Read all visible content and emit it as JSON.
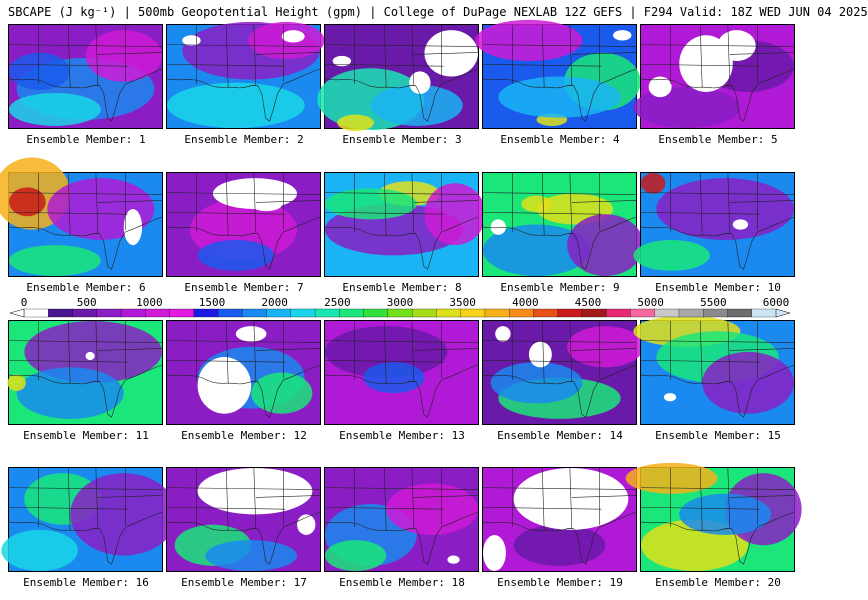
{
  "title": "SBCAPE (J kg⁻¹) | 500mb Geopotential Height (gpm) | College of DuPage NEXLAB 12Z GEFS | F294 Valid: 18Z WED JUN 04 2025",
  "colorbar": {
    "ticks": [
      "0",
      "500",
      "1000",
      "1500",
      "2000",
      "2500",
      "3000",
      "3500",
      "4000",
      "4500",
      "5000",
      "5500",
      "6000"
    ],
    "colors": [
      "#ffffff",
      "#4a1690",
      "#6a1aa8",
      "#8a1ec4",
      "#b01ad6",
      "#cf1ad6",
      "#e21ae0",
      "#1a1ae6",
      "#1a5aec",
      "#1a8af0",
      "#1ab4f4",
      "#1ad6e8",
      "#1ae6b4",
      "#1ae67a",
      "#34e03c",
      "#72e01a",
      "#a8dc1a",
      "#e0e01a",
      "#f6d21a",
      "#f6b01a",
      "#f68a1a",
      "#e8501a",
      "#c81a1a",
      "#a01a1a",
      "#e62a70",
      "#f66aa0",
      "#c8c8c8",
      "#a8a8a8",
      "#8a8a8a",
      "#6c6c6c",
      "#cce6f6"
    ]
  },
  "panels": [
    {
      "label": "Ensemble Member: 1",
      "base": "#8a1ec4",
      "blobs": [
        [
          "#1a8af0",
          0.5,
          0.62,
          0.45,
          0.3
        ],
        [
          "#1ad6e8",
          0.3,
          0.82,
          0.3,
          0.16
        ],
        [
          "#cf1ad6",
          0.75,
          0.3,
          0.25,
          0.25
        ],
        [
          "#1a5aec",
          0.2,
          0.45,
          0.2,
          0.18
        ]
      ],
      "white": []
    },
    {
      "label": "Ensemble Member: 2",
      "base": "#1a8af0",
      "blobs": [
        [
          "#8a1ec4",
          0.55,
          0.25,
          0.45,
          0.28
        ],
        [
          "#1ad6e8",
          0.45,
          0.78,
          0.45,
          0.22
        ],
        [
          "#cf1ad6",
          0.78,
          0.15,
          0.25,
          0.18
        ]
      ],
      "white": [
        [
          0.1,
          0.1,
          0.12,
          0.1
        ],
        [
          0.75,
          0.05,
          0.15,
          0.12
        ]
      ]
    },
    {
      "label": "Ensemble Member: 3",
      "base": "#6a1aa8",
      "blobs": [
        [
          "#1ae6b4",
          0.3,
          0.72,
          0.35,
          0.3
        ],
        [
          "#1ab4f4",
          0.6,
          0.78,
          0.3,
          0.2
        ],
        [
          "#e0e01a",
          0.2,
          0.95,
          0.12,
          0.08
        ]
      ],
      "white": [
        [
          0.65,
          0.05,
          0.35,
          0.45
        ],
        [
          0.05,
          0.3,
          0.12,
          0.1
        ],
        [
          0.55,
          0.45,
          0.14,
          0.22
        ]
      ]
    },
    {
      "label": "Ensemble Member: 4",
      "base": "#1a5aec",
      "blobs": [
        [
          "#cf1ad6",
          0.3,
          0.15,
          0.35,
          0.2
        ],
        [
          "#1ae67a",
          0.78,
          0.55,
          0.25,
          0.28
        ],
        [
          "#e0e01a",
          0.45,
          0.92,
          0.1,
          0.06
        ],
        [
          "#1ab4f4",
          0.5,
          0.7,
          0.4,
          0.2
        ]
      ],
      "white": [
        [
          0.85,
          0.05,
          0.12,
          0.1
        ]
      ]
    },
    {
      "label": "Ensemble Member: 5",
      "base": "#b01ad6",
      "blobs": [
        [
          "#6a1aa8",
          0.7,
          0.4,
          0.3,
          0.25
        ],
        [
          "#8a1ec4",
          0.3,
          0.8,
          0.35,
          0.2
        ]
      ],
      "white": [
        [
          0.25,
          0.1,
          0.35,
          0.55
        ],
        [
          0.05,
          0.5,
          0.15,
          0.2
        ],
        [
          0.5,
          0.05,
          0.25,
          0.3
        ]
      ]
    },
    {
      "label": "Ensemble Member: 6",
      "base": "#1a8af0",
      "blobs": [
        [
          "#f6b01a",
          0.15,
          0.2,
          0.25,
          0.35
        ],
        [
          "#c81a1a",
          0.12,
          0.28,
          0.12,
          0.14
        ],
        [
          "#b01ad6",
          0.6,
          0.35,
          0.35,
          0.3
        ],
        [
          "#1ae67a",
          0.3,
          0.85,
          0.3,
          0.15
        ]
      ],
      "white": [
        [
          0.75,
          0.35,
          0.12,
          0.35
        ]
      ]
    },
    {
      "label": "Ensemble Member: 7",
      "base": "#8a1ec4",
      "blobs": [
        [
          "#cf1ad6",
          0.5,
          0.55,
          0.35,
          0.3
        ],
        [
          "#1a5aec",
          0.45,
          0.8,
          0.25,
          0.15
        ]
      ],
      "white": [
        [
          0.3,
          0.05,
          0.55,
          0.3
        ],
        [
          0.55,
          0.25,
          0.2,
          0.12
        ]
      ]
    },
    {
      "label": "Ensemble Member: 8",
      "base": "#1ab4f4",
      "blobs": [
        [
          "#8a1ec4",
          0.45,
          0.55,
          0.45,
          0.25
        ],
        [
          "#e0e01a",
          0.55,
          0.2,
          0.2,
          0.12
        ],
        [
          "#1ae67a",
          0.3,
          0.3,
          0.3,
          0.15
        ],
        [
          "#cf1ad6",
          0.85,
          0.4,
          0.2,
          0.3
        ]
      ],
      "white": []
    },
    {
      "label": "Ensemble Member: 9",
      "base": "#1ae67a",
      "blobs": [
        [
          "#e0e01a",
          0.6,
          0.35,
          0.25,
          0.15
        ],
        [
          "#1a8af0",
          0.35,
          0.75,
          0.35,
          0.25
        ],
        [
          "#8a1ec4",
          0.8,
          0.7,
          0.25,
          0.3
        ],
        [
          "#e0e01a",
          0.35,
          0.3,
          0.1,
          0.08
        ]
      ],
      "white": [
        [
          0.05,
          0.45,
          0.1,
          0.15
        ]
      ]
    },
    {
      "label": "Ensemble Member: 10",
      "base": "#1a8af0",
      "blobs": [
        [
          "#8a1ec4",
          0.55,
          0.35,
          0.45,
          0.3
        ],
        [
          "#c81a1a",
          0.08,
          0.1,
          0.08,
          0.1
        ],
        [
          "#1ae67a",
          0.2,
          0.8,
          0.25,
          0.15
        ]
      ],
      "white": [
        [
          0.6,
          0.45,
          0.1,
          0.1
        ]
      ]
    },
    {
      "label": "Ensemble Member: 11",
      "base": "#1ae67a",
      "blobs": [
        [
          "#8a1ec4",
          0.55,
          0.3,
          0.45,
          0.3
        ],
        [
          "#1a8af0",
          0.4,
          0.7,
          0.35,
          0.25
        ],
        [
          "#e0e01a",
          0.05,
          0.6,
          0.06,
          0.08
        ]
      ],
      "white": [
        [
          0.5,
          0.3,
          0.06,
          0.08
        ]
      ]
    },
    {
      "label": "Ensemble Member: 12",
      "base": "#8a1ec4",
      "blobs": [
        [
          "#1a8af0",
          0.55,
          0.55,
          0.35,
          0.3
        ],
        [
          "#1ae67a",
          0.75,
          0.7,
          0.2,
          0.2
        ]
      ],
      "white": [
        [
          0.2,
          0.35,
          0.35,
          0.55
        ],
        [
          0.45,
          0.05,
          0.2,
          0.15
        ]
      ]
    },
    {
      "label": "Ensemble Member: 13",
      "base": "#b01ad6",
      "blobs": [
        [
          "#6a1aa8",
          0.4,
          0.3,
          0.4,
          0.25
        ],
        [
          "#1a5aec",
          0.45,
          0.55,
          0.2,
          0.15
        ]
      ],
      "white": []
    },
    {
      "label": "Ensemble Member: 14",
      "base": "#6a1aa8",
      "blobs": [
        [
          "#1ae67a",
          0.5,
          0.75,
          0.4,
          0.2
        ],
        [
          "#1a8af0",
          0.35,
          0.6,
          0.3,
          0.2
        ],
        [
          "#cf1ad6",
          0.8,
          0.25,
          0.25,
          0.2
        ]
      ],
      "white": [
        [
          0.3,
          0.2,
          0.15,
          0.25
        ],
        [
          0.08,
          0.05,
          0.1,
          0.15
        ]
      ]
    },
    {
      "label": "Ensemble Member: 15",
      "base": "#1a8af0",
      "blobs": [
        [
          "#e0e01a",
          0.3,
          0.1,
          0.35,
          0.15
        ],
        [
          "#1ae67a",
          0.5,
          0.35,
          0.4,
          0.25
        ],
        [
          "#8a1ec4",
          0.7,
          0.6,
          0.3,
          0.3
        ]
      ],
      "white": [
        [
          0.15,
          0.7,
          0.08,
          0.08
        ]
      ]
    },
    {
      "label": "Ensemble Member: 16",
      "base": "#1a8af0",
      "blobs": [
        [
          "#1ae67a",
          0.35,
          0.3,
          0.25,
          0.25
        ],
        [
          "#8a1ec4",
          0.75,
          0.45,
          0.35,
          0.4
        ],
        [
          "#1ad6e8",
          0.2,
          0.8,
          0.25,
          0.2
        ]
      ],
      "white": []
    },
    {
      "label": "Ensemble Member: 17",
      "base": "#8a1ec4",
      "blobs": [
        [
          "#1ae67a",
          0.3,
          0.75,
          0.25,
          0.2
        ],
        [
          "#1a8af0",
          0.55,
          0.85,
          0.3,
          0.15
        ]
      ],
      "white": [
        [
          0.2,
          0.0,
          0.75,
          0.45
        ],
        [
          0.85,
          0.45,
          0.12,
          0.2
        ]
      ]
    },
    {
      "label": "Ensemble Member: 18",
      "base": "#8a1ec4",
      "blobs": [
        [
          "#1a8af0",
          0.3,
          0.65,
          0.3,
          0.3
        ],
        [
          "#1ae67a",
          0.2,
          0.85,
          0.2,
          0.15
        ],
        [
          "#cf1ad6",
          0.7,
          0.4,
          0.3,
          0.25
        ]
      ],
      "white": [
        [
          0.8,
          0.85,
          0.08,
          0.08
        ]
      ]
    },
    {
      "label": "Ensemble Member: 19",
      "base": "#b01ad6",
      "blobs": [
        [
          "#6a1aa8",
          0.5,
          0.75,
          0.3,
          0.2
        ]
      ],
      "white": [
        [
          0.2,
          0.0,
          0.75,
          0.6
        ],
        [
          0.0,
          0.65,
          0.15,
          0.35
        ]
      ]
    },
    {
      "label": "Ensemble Member: 20",
      "base": "#1ae67a",
      "blobs": [
        [
          "#f6b01a",
          0.2,
          0.1,
          0.3,
          0.15
        ],
        [
          "#e0e01a",
          0.35,
          0.75,
          0.35,
          0.25
        ],
        [
          "#8a1ec4",
          0.8,
          0.4,
          0.25,
          0.35
        ],
        [
          "#1a8af0",
          0.55,
          0.45,
          0.3,
          0.2
        ]
      ],
      "white": []
    }
  ]
}
